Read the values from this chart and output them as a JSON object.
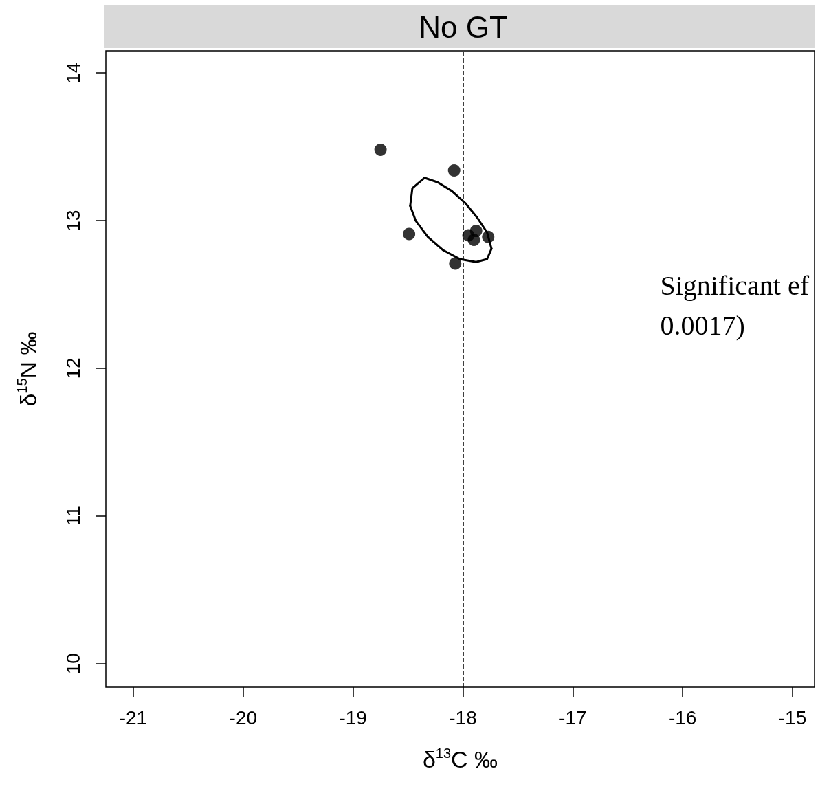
{
  "chart_data": {
    "type": "scatter",
    "title": "No GT",
    "xlabel": "δ$^{13}$C ‰",
    "ylabel": "δ$^{15}$N ‰",
    "xlim": [
      -21.25,
      -14.8
    ],
    "xticks": [
      -21,
      -20,
      -19,
      -18,
      -17,
      -16,
      -15
    ],
    "ylim": [
      9.84,
      14.15
    ],
    "yticks": [
      10,
      11,
      12,
      13,
      14
    ],
    "grid": false,
    "marker": "circle",
    "series": [
      {
        "color": "#000000",
        "x": [
          -18.75,
          -18.08,
          -18.49,
          -18.07,
          -17.95,
          -17.88,
          -17.9,
          -17.77
        ],
        "values": [
          13.48,
          13.34,
          12.91,
          12.71,
          12.9,
          12.93,
          12.87,
          12.89
        ]
      },
      {
        "type": "line",
        "color": "#000000",
        "marker": "none",
        "line_style": "solid",
        "x": [
          -18.48,
          -18.46,
          -18.35,
          -18.23,
          -18.1,
          -17.98,
          -17.87,
          -17.78,
          -17.74
        ],
        "values": [
          13.1,
          13.22,
          13.29,
          13.26,
          13.2,
          13.12,
          13.02,
          12.92,
          12.81
        ]
      },
      {
        "type": "line",
        "color": "#000000",
        "marker": "none",
        "line_style": "solid",
        "x": [
          -18.48,
          -18.43,
          -18.32,
          -18.18,
          -18.03,
          -17.88,
          -17.78,
          -17.74
        ],
        "values": [
          13.1,
          13.0,
          12.89,
          12.8,
          12.74,
          12.72,
          12.74,
          12.81
        ]
      }
    ],
    "ref_lines": [
      {
        "axis": "x",
        "value": -18,
        "color": "#000000",
        "line_style": "dashed"
      }
    ],
    "annotations": [
      "Significant ef\n0.0017)"
    ]
  }
}
